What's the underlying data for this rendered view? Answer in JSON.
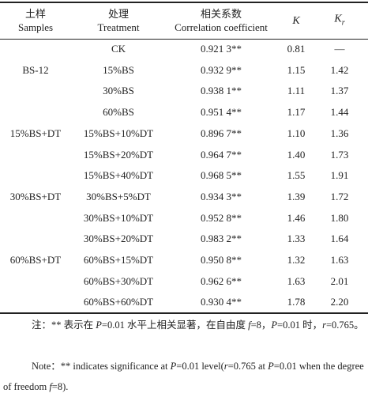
{
  "table": {
    "header": [
      {
        "zh": "土样",
        "en": "Samples"
      },
      {
        "zh": "处理",
        "en": "Treatment"
      },
      {
        "zh": "相关系数",
        "en": "Correlation coefficient"
      },
      {
        "main": "K"
      },
      {
        "main": "K",
        "sub": "r"
      }
    ],
    "groups": [
      {
        "sample": "BS-12",
        "rows": [
          [
            "CK",
            "0.921 3**",
            "0.81",
            "—"
          ],
          [
            "15%BS",
            "0.932 9**",
            "1.15",
            "1.42"
          ],
          [
            "30%BS",
            "0.938 1**",
            "1.11",
            "1.37"
          ],
          [
            "60%BS",
            "0.951 4**",
            "1.17",
            "1.44"
          ]
        ]
      },
      {
        "sample": "15%BS+DT",
        "rows": [
          [
            "15%BS+10%DT",
            "0.896 7**",
            "1.10",
            "1.36"
          ],
          [
            "15%BS+20%DT",
            "0.964 7**",
            "1.40",
            "1.73"
          ],
          [
            "15%BS+40%DT",
            "0.968 5**",
            "1.55",
            "1.91"
          ]
        ]
      },
      {
        "sample": "30%BS+DT",
        "rows": [
          [
            "30%BS+5%DT",
            "0.934 3**",
            "1.39",
            "1.72"
          ],
          [
            "30%BS+10%DT",
            "0.952 8**",
            "1.46",
            "1.80"
          ],
          [
            "30%BS+20%DT",
            "0.983 2**",
            "1.33",
            "1.64"
          ]
        ]
      },
      {
        "sample": "60%BS+DT",
        "rows": [
          [
            "60%BS+15%DT",
            "0.950 8**",
            "1.32",
            "1.63"
          ],
          [
            "60%BS+30%DT",
            "0.962 6**",
            "1.63",
            "2.01"
          ],
          [
            "60%BS+60%DT",
            "0.930 4**",
            "1.78",
            "2.20"
          ]
        ]
      }
    ]
  },
  "notes": [
    "注：** 表示在 P=0.01 水平上相关显著，在自由度 f=8，P=0.01 时，r=0.765。",
    "Note：** indicates significance at P=0.01 level(r=0.765 at P=0.01 when the degree of freedom f=8)."
  ]
}
